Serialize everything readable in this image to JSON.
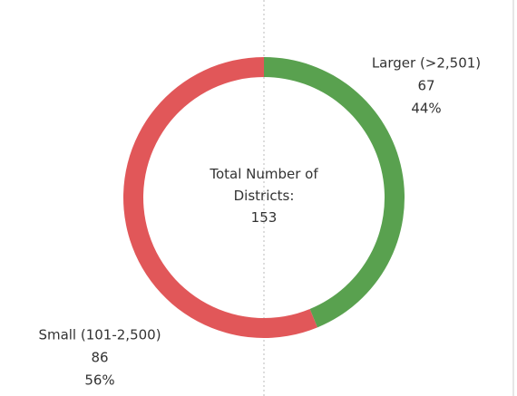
{
  "chart_data": {
    "type": "donut",
    "categories": [
      "Larger (>2,501)",
      "Small (101-2,500)"
    ],
    "values": [
      67,
      86
    ],
    "percent_labels": [
      "44%",
      "56%"
    ],
    "colors": [
      "#59a14f",
      "#e15759"
    ],
    "center_label": "Total Number of Districts:",
    "total": 153
  }
}
